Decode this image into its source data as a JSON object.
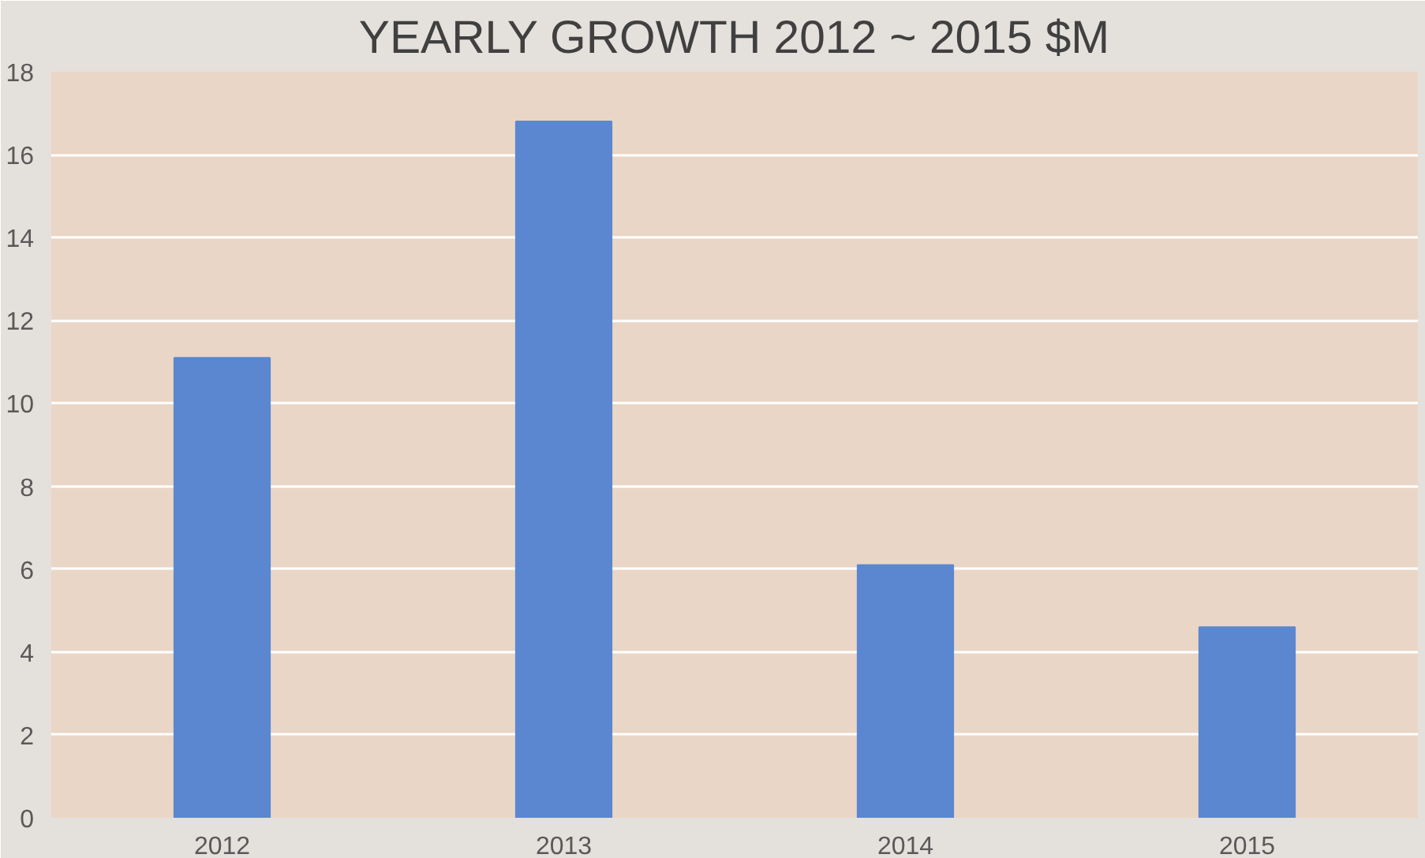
{
  "chart_data": {
    "type": "bar",
    "title": "YEARLY GROWTH 2012 ~ 2015 $M",
    "categories": [
      "2012",
      "2013",
      "2014",
      "2015"
    ],
    "values": [
      11.1,
      16.8,
      6.1,
      4.6
    ],
    "color": "#5b87d0",
    "ylim": [
      0,
      18
    ],
    "yticks": [
      0,
      2,
      4,
      6,
      8,
      10,
      12,
      14,
      16,
      18
    ],
    "grid": "y"
  }
}
